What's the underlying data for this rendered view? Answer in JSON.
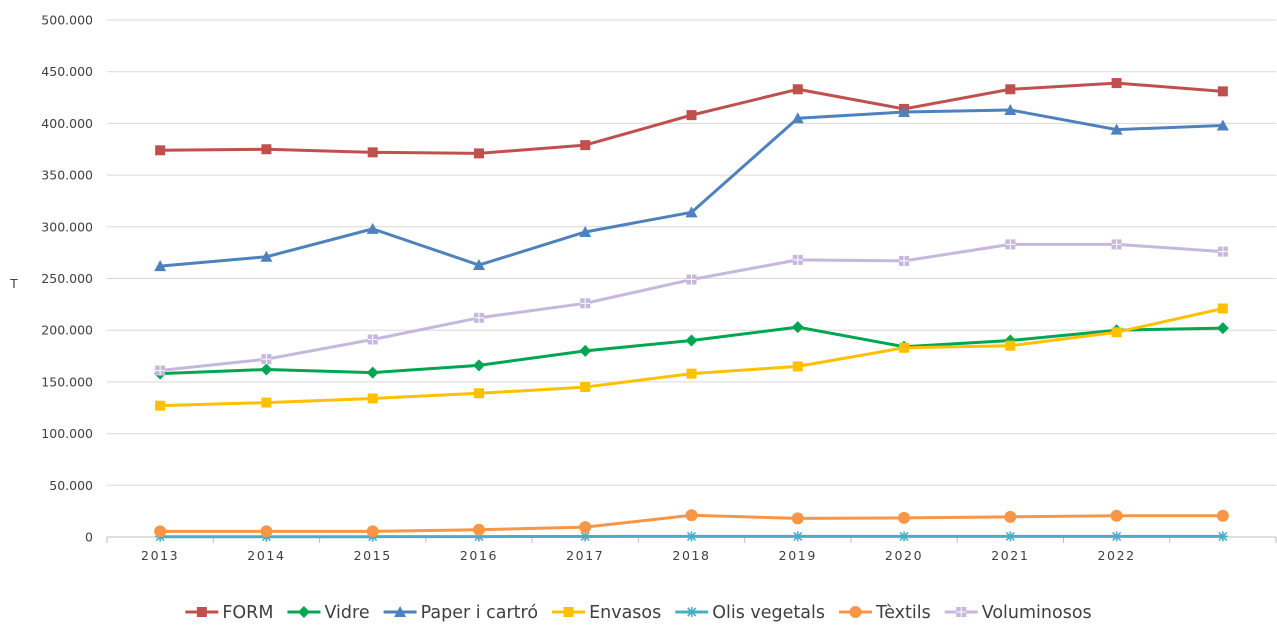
{
  "chart_data": {
    "type": "line",
    "title": "",
    "xlabel": "",
    "ylabel": "T",
    "ylim": [
      0,
      500000
    ],
    "grid": true,
    "legend_position": "bottom",
    "yticks": [
      "0",
      "50.000",
      "100.000",
      "150.000",
      "200.000",
      "250.000",
      "300.000",
      "350.000",
      "400.000",
      "450.000",
      "500.000"
    ],
    "ytick_values": [
      0,
      50000,
      100000,
      150000,
      200000,
      250000,
      300000,
      350000,
      400000,
      450000,
      500000
    ],
    "categories": [
      "2013",
      "2014",
      "2015",
      "2016",
      "2017",
      "2018",
      "2019",
      "2020",
      "2021",
      "2022",
      ""
    ],
    "series": [
      {
        "name": "FORM",
        "color": "#C0504D",
        "marker": "square",
        "values": [
          374000,
          375000,
          372000,
          371000,
          379000,
          408000,
          433000,
          414000,
          433000,
          439000,
          431000
        ]
      },
      {
        "name": "Vidre",
        "color": "#00A651",
        "marker": "diamond",
        "values": [
          158000,
          162000,
          159000,
          166000,
          180000,
          190000,
          203000,
          184000,
          190000,
          200000,
          202000
        ]
      },
      {
        "name": "Paper i cartró",
        "color": "#4F81BD",
        "marker": "triangle",
        "values": [
          262000,
          271000,
          298000,
          263000,
          295000,
          314000,
          405000,
          411000,
          413000,
          394000,
          398000
        ]
      },
      {
        "name": "Envasos",
        "color": "#FFC000",
        "marker": "square",
        "values": [
          127000,
          130000,
          134000,
          139000,
          145000,
          158000,
          165000,
          183000,
          185000,
          198000,
          221000
        ]
      },
      {
        "name": "Olis vegetals",
        "color": "#4BACC6",
        "marker": "star",
        "values": [
          300,
          300,
          300,
          400,
          500,
          600,
          600,
          600,
          600,
          600,
          600
        ]
      },
      {
        "name": "Tèxtils",
        "color": "#F79646",
        "marker": "circle",
        "values": [
          5500,
          5500,
          5500,
          7000,
          9500,
          21000,
          18000,
          18500,
          19500,
          20500,
          20500
        ]
      },
      {
        "name": "Voluminosos",
        "color": "#C6B8DC",
        "marker": "square-dot",
        "values": [
          161000,
          172000,
          191000,
          212000,
          226000,
          249000,
          268000,
          267000,
          283000,
          283000,
          276000
        ]
      }
    ]
  }
}
